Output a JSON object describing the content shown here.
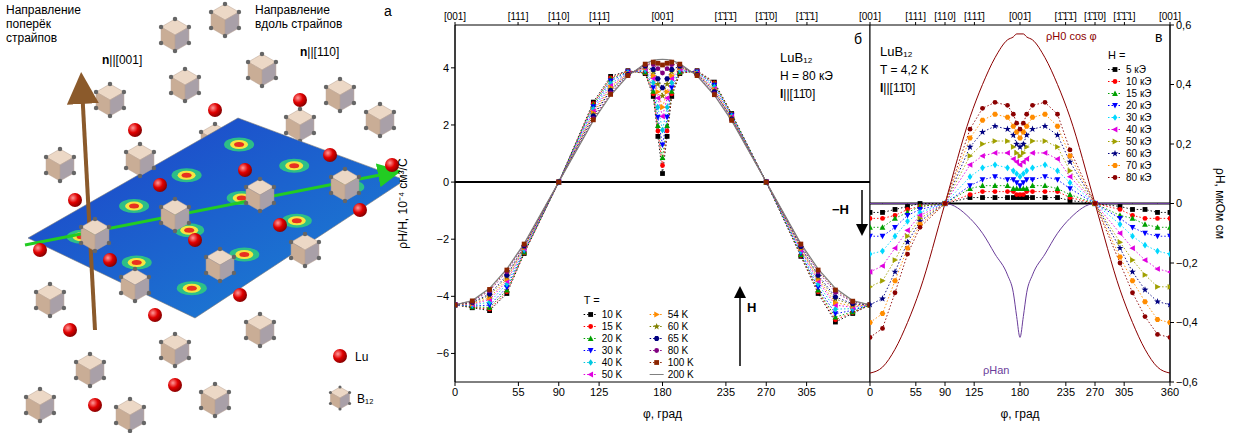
{
  "diagram": {
    "title": "а",
    "texts": {
      "across": "Направление поперёк страйпов",
      "across_n": "n||[001]",
      "along": "Направление вдоль страйпов",
      "along_n": "n||[110]"
    },
    "legend": [
      "Lu",
      "B₁₂"
    ]
  },
  "chart_data": [
    {
      "type": "line",
      "title": "б",
      "x_label": "φ, град",
      "y_label": "ρH/H, 10⁻⁴ см³/С",
      "annotations": [
        "LuB₁₂",
        "H = 80 кЭ",
        "I||[11̄0]",
        "H",
        "−H"
      ],
      "legend_title": "T =",
      "legend": "lower center",
      "x": [
        0,
        15,
        30,
        45,
        60,
        90,
        120,
        135,
        150,
        165,
        172,
        176,
        180,
        184,
        188,
        195,
        210,
        225,
        240,
        270,
        300,
        315,
        330,
        345,
        360
      ],
      "xlim": [
        0,
        360
      ],
      "xticks": [
        0,
        55,
        90,
        125,
        180,
        235,
        270,
        305
      ],
      "x2lim": [
        0,
        360
      ],
      "x2ticks": [
        {
          "value": 0,
          "label": "[001]"
        },
        {
          "value": 54.7,
          "label": "[111]"
        },
        {
          "value": 90,
          "label": "[110]"
        },
        {
          "value": 125.3,
          "label": "[111̄]"
        },
        {
          "value": 180,
          "label": "[001̄]"
        },
        {
          "value": 234.7,
          "label": "[1̄1̄1̄]"
        },
        {
          "value": 270,
          "label": "[1̄1̄0]"
        },
        {
          "value": 305.3,
          "label": "[1̄1̄1]"
        }
      ],
      "ylim": [
        -7,
        5.5
      ],
      "yticks": [
        {
          "value": -6,
          "label": "−6"
        },
        {
          "value": -4,
          "label": "−4"
        },
        {
          "value": -2,
          "label": "−2"
        },
        0,
        2,
        4
      ],
      "series": [
        {
          "name": "10 K",
          "color": "#000000",
          "marker": "square",
          "line_style": "dotted",
          "values": [
            -4.3,
            -4.4,
            -4.5,
            -3.9,
            -2.5,
            0,
            2.8,
            3.7,
            3.9,
            3.8,
            3.0,
            1.6,
            0.3,
            1.6,
            3.0,
            3.8,
            3.9,
            3.5,
            2.4,
            0,
            -2.6,
            -3.9,
            -4.9,
            -4.6,
            -4.3
          ]
        },
        {
          "name": "15 K",
          "color": "#ff0000",
          "marker": "circle",
          "line_style": "dotted",
          "values": [
            -4.3,
            -4.38,
            -4.45,
            -3.84,
            -2.48,
            0,
            2.75,
            3.65,
            3.89,
            3.82,
            3.09,
            1.79,
            0.58,
            1.79,
            3.09,
            3.82,
            3.89,
            3.47,
            2.38,
            0,
            -2.57,
            -3.84,
            -4.82,
            -4.57,
            -4.3
          ]
        },
        {
          "name": "20 K",
          "color": "#00a000",
          "marker": "triangle",
          "line_style": "dotted",
          "values": [
            -4.3,
            -4.37,
            -4.39,
            -3.78,
            -2.45,
            0,
            2.71,
            3.61,
            3.87,
            3.85,
            3.18,
            1.98,
            0.86,
            1.98,
            3.18,
            3.85,
            3.87,
            3.44,
            2.37,
            0,
            -2.54,
            -3.78,
            -4.73,
            -4.54,
            -4.3
          ]
        },
        {
          "name": "30 K",
          "color": "#0000ff",
          "marker": "triangle-down",
          "line_style": "dotted",
          "values": [
            -4.3,
            -4.34,
            -4.31,
            -3.69,
            -2.41,
            0,
            2.64,
            3.54,
            3.86,
            3.89,
            3.31,
            2.27,
            1.3,
            2.27,
            3.31,
            3.89,
            3.86,
            3.39,
            2.34,
            0,
            -2.49,
            -3.69,
            -4.61,
            -4.49,
            -4.3
          ]
        },
        {
          "name": "40 K",
          "color": "#00c8e0",
          "marker": "diamond",
          "line_style": "dotted",
          "values": [
            -4.3,
            -4.31,
            -4.2,
            -3.57,
            -2.37,
            0,
            2.55,
            3.45,
            3.83,
            3.93,
            3.48,
            2.62,
            1.82,
            2.62,
            3.48,
            3.93,
            3.83,
            3.33,
            2.31,
            0,
            -2.43,
            -3.57,
            -4.45,
            -4.43,
            -4.3
          ]
        },
        {
          "name": "50 K",
          "color": "#e000e0",
          "marker": "triangle-left",
          "line_style": "dotted",
          "values": [
            -4.3,
            -4.28,
            -4.11,
            -3.47,
            -2.33,
            0,
            2.48,
            3.37,
            3.81,
            3.97,
            3.63,
            2.94,
            2.3,
            2.94,
            3.63,
            3.97,
            3.81,
            3.27,
            2.28,
            0,
            -2.38,
            -3.47,
            -4.31,
            -4.38,
            -4.3
          ]
        },
        {
          "name": "54 K",
          "color": "#ff8c00",
          "marker": "triangle-right",
          "line_style": "dotted",
          "values": [
            -4.3,
            -4.26,
            -4.05,
            -3.4,
            -2.3,
            0,
            2.42,
            3.32,
            3.8,
            4.0,
            3.73,
            3.16,
            2.62,
            3.16,
            3.73,
            4.0,
            3.8,
            3.23,
            2.26,
            0,
            -2.34,
            -3.4,
            -4.22,
            -4.34,
            -4.3
          ]
        },
        {
          "name": "60 K",
          "color": "#808000",
          "marker": "star",
          "line_style": "dotted",
          "values": [
            -4.3,
            -4.23,
            -3.97,
            -3.32,
            -2.26,
            0,
            2.36,
            3.25,
            3.78,
            4.04,
            3.86,
            3.43,
            3.02,
            3.43,
            3.86,
            4.04,
            3.78,
            3.19,
            2.23,
            0,
            -2.29,
            -3.32,
            -4.1,
            -4.29,
            -4.3
          ]
        },
        {
          "name": "65 K",
          "color": "#000080",
          "marker": "hexagon",
          "line_style": "dotted",
          "values": [
            -4.3,
            -4.21,
            -3.92,
            -3.26,
            -2.24,
            0,
            2.31,
            3.21,
            3.77,
            4.06,
            3.94,
            3.62,
            3.3,
            3.62,
            3.94,
            4.06,
            3.77,
            3.16,
            2.21,
            0,
            -2.26,
            -3.26,
            -4.02,
            -4.26,
            -4.3
          ]
        },
        {
          "name": "80 K",
          "color": "#800080",
          "marker": "circle",
          "line_style": "dotted",
          "values": [
            -4.3,
            -4.18,
            -3.81,
            -3.14,
            -2.19,
            0,
            2.23,
            3.12,
            3.74,
            4.11,
            4.11,
            3.97,
            3.82,
            3.97,
            4.11,
            4.11,
            3.74,
            3.1,
            2.18,
            0,
            -2.2,
            -3.14,
            -3.86,
            -4.2,
            -4.3
          ]
        },
        {
          "name": "100 K",
          "color": "#8b2500",
          "marker": "square",
          "line_style": "dotted",
          "values": [
            -4.3,
            -4.16,
            -3.76,
            -3.08,
            -2.17,
            0,
            2.18,
            3.07,
            3.73,
            4.13,
            4.2,
            4.16,
            4.1,
            4.16,
            4.2,
            4.13,
            3.73,
            3.06,
            2.16,
            0,
            -2.17,
            -3.08,
            -3.78,
            -4.17,
            -4.3
          ]
        },
        {
          "name": "200 K",
          "color": "#808080",
          "marker": "none",
          "line_style": "solid",
          "values": [
            -4.3,
            -4.15,
            -3.72,
            -3.04,
            -2.15,
            0,
            2.15,
            3.04,
            3.72,
            4.15,
            4.26,
            4.29,
            4.3,
            4.29,
            4.26,
            4.15,
            3.72,
            3.04,
            2.15,
            0,
            -2.15,
            -3.04,
            -3.72,
            -4.15,
            -4.3
          ]
        }
      ]
    },
    {
      "type": "line",
      "title": "в",
      "x_label": "φ, град",
      "y_label": "ρH, мкОм см",
      "annotations": [
        "LuB₁₂",
        "T = 4,2 K",
        "I||[11̄0]"
      ],
      "legend_title": "H =",
      "legend": "upper right",
      "x": [
        0,
        15,
        30,
        45,
        60,
        90,
        120,
        135,
        150,
        165,
        172,
        176,
        180,
        184,
        188,
        195,
        210,
        225,
        240,
        270,
        300,
        315,
        330,
        345,
        360
      ],
      "xlim": [
        0,
        360
      ],
      "xticks": [
        0,
        55,
        90,
        125,
        180,
        235,
        270,
        305,
        360
      ],
      "x2lim": [
        0,
        360
      ],
      "x2ticks": [
        {
          "value": 0,
          "label": "[001]"
        },
        {
          "value": 54.7,
          "label": "[111]"
        },
        {
          "value": 90,
          "label": "[110]"
        },
        {
          "value": 125.3,
          "label": "[111̄]"
        },
        {
          "value": 180,
          "label": "[001̄]"
        },
        {
          "value": 234.7,
          "label": "[1̄1̄1̄]"
        },
        {
          "value": 270,
          "label": "[1̄1̄0]"
        },
        {
          "value": 305.3,
          "label": "[1̄1̄1]"
        },
        {
          "value": 360,
          "label": "[001]"
        }
      ],
      "ylim": [
        -0.6,
        0.6
      ],
      "yticks": [
        {
          "value": -0.6,
          "label": "−0,6"
        },
        {
          "value": -0.4,
          "label": "−0,4"
        },
        {
          "value": -0.2,
          "label": "−0,2"
        },
        0,
        {
          "value": 0.2,
          "label": "0,2"
        },
        {
          "value": 0.4,
          "label": "0,4"
        },
        {
          "value": 0.6,
          "label": "0,6"
        }
      ],
      "series": [
        {
          "name": "5 кЭ",
          "color": "#000000",
          "marker": "square",
          "line_style": "dotted",
          "values": [
            -0.03,
            -0.03,
            -0.02,
            -0.01,
            0,
            0,
            0.02,
            0.02,
            0.02,
            0.02,
            0.02,
            0.02,
            0.02,
            0.02,
            0.02,
            0.02,
            0.02,
            0.02,
            0.01,
            0,
            -0.01,
            -0.02,
            -0.02,
            -0.03,
            -0.03
          ]
        },
        {
          "name": "10 кЭ",
          "color": "#ff0000",
          "marker": "circle",
          "line_style": "dotted",
          "values": [
            -0.05,
            -0.05,
            -0.04,
            -0.02,
            -0.01,
            0,
            0.03,
            0.04,
            0.04,
            0.04,
            0.04,
            0.03,
            0.03,
            0.03,
            0.04,
            0.04,
            0.04,
            0.04,
            0.02,
            0,
            -0.02,
            -0.04,
            -0.05,
            -0.05,
            -0.05
          ]
        },
        {
          "name": "15 кЭ",
          "color": "#00a000",
          "marker": "triangle",
          "line_style": "dotted",
          "values": [
            -0.08,
            -0.08,
            -0.05,
            -0.03,
            -0.01,
            0,
            0.05,
            0.06,
            0.06,
            0.06,
            0.05,
            0.05,
            0.05,
            0.05,
            0.05,
            0.06,
            0.06,
            0.05,
            0.03,
            0,
            -0.04,
            -0.05,
            -0.07,
            -0.08,
            -0.08
          ]
        },
        {
          "name": "20 кЭ",
          "color": "#0000ff",
          "marker": "triangle-down",
          "line_style": "dotted",
          "values": [
            -0.11,
            -0.11,
            -0.08,
            -0.04,
            -0.02,
            0,
            0.06,
            0.08,
            0.09,
            0.08,
            0.08,
            0.07,
            0.06,
            0.07,
            0.08,
            0.08,
            0.09,
            0.08,
            0.05,
            0,
            -0.05,
            -0.08,
            -0.1,
            -0.11,
            -0.11
          ]
        },
        {
          "name": "30 кЭ",
          "color": "#00d8ff",
          "marker": "diamond",
          "line_style": "dotted",
          "values": [
            -0.17,
            -0.16,
            -0.11,
            -0.06,
            -0.03,
            0,
            0.09,
            0.12,
            0.13,
            0.12,
            0.11,
            0.1,
            0.09,
            0.1,
            0.11,
            0.12,
            0.13,
            0.11,
            0.07,
            0,
            -0.07,
            -0.11,
            -0.14,
            -0.16,
            -0.17
          ]
        },
        {
          "name": "40 кЭ",
          "color": "#e000e0",
          "marker": "triangle-left",
          "line_style": "dotted",
          "values": [
            -0.23,
            -0.21,
            -0.15,
            -0.09,
            -0.04,
            0,
            0.13,
            0.16,
            0.17,
            0.17,
            0.15,
            0.14,
            0.13,
            0.14,
            0.15,
            0.17,
            0.17,
            0.15,
            0.09,
            0,
            -0.1,
            -0.15,
            -0.19,
            -0.22,
            -0.23
          ]
        },
        {
          "name": "50 кЭ",
          "color": "#a0a000",
          "marker": "triangle-right",
          "line_style": "dotted",
          "values": [
            -0.28,
            -0.26,
            -0.19,
            -0.11,
            -0.05,
            0,
            0.16,
            0.2,
            0.21,
            0.21,
            0.19,
            0.17,
            0.16,
            0.17,
            0.19,
            0.21,
            0.21,
            0.19,
            0.11,
            0,
            -0.13,
            -0.19,
            -0.24,
            -0.28,
            -0.28
          ]
        },
        {
          "name": "60 кЭ",
          "color": "#000080",
          "marker": "star",
          "line_style": "dotted",
          "values": [
            -0.34,
            -0.32,
            -0.23,
            -0.13,
            -0.06,
            0,
            0.19,
            0.24,
            0.26,
            0.25,
            0.23,
            0.2,
            0.19,
            0.2,
            0.23,
            0.25,
            0.26,
            0.23,
            0.14,
            0,
            -0.15,
            -0.23,
            -0.29,
            -0.33,
            -0.34
          ]
        },
        {
          "name": "70 кЭ",
          "color": "#ff8c00",
          "marker": "hexagon",
          "line_style": "dotted",
          "values": [
            -0.4,
            -0.37,
            -0.26,
            -0.15,
            -0.07,
            0,
            0.22,
            0.28,
            0.3,
            0.29,
            0.26,
            0.24,
            0.22,
            0.24,
            0.26,
            0.29,
            0.3,
            0.26,
            0.16,
            0,
            -0.18,
            -0.26,
            -0.33,
            -0.39,
            -0.4
          ]
        },
        {
          "name": "80 кЭ",
          "color": "#8b0000",
          "marker": "circle",
          "line_style": "dotted",
          "values": [
            -0.45,
            -0.42,
            -0.3,
            -0.17,
            -0.08,
            0,
            0.25,
            0.32,
            0.34,
            0.33,
            0.3,
            0.27,
            0.25,
            0.27,
            0.3,
            0.33,
            0.34,
            0.3,
            0.18,
            0,
            -0.2,
            -0.3,
            -0.38,
            -0.44,
            -0.45
          ]
        }
      ],
      "curves": [
        {
          "name": "ρH0 cos φ",
          "color": "#8b0000",
          "values": [
            -0.57,
            -0.55,
            -0.49,
            -0.4,
            -0.29,
            0,
            0.29,
            0.4,
            0.49,
            0.55,
            0.56,
            0.57,
            0.57,
            0.57,
            0.56,
            0.55,
            0.49,
            0.4,
            0.29,
            0,
            -0.29,
            -0.4,
            -0.49,
            -0.55,
            -0.57
          ]
        },
        {
          "name": "ρHan",
          "color": "#6a3d9a",
          "values": [
            0,
            0,
            0,
            0,
            0,
            0,
            -0.05,
            -0.1,
            -0.17,
            -0.24,
            -0.3,
            -0.38,
            -0.45,
            -0.38,
            -0.3,
            -0.24,
            -0.17,
            -0.1,
            -0.05,
            0,
            0,
            0,
            0,
            0,
            0
          ]
        }
      ]
    }
  ]
}
